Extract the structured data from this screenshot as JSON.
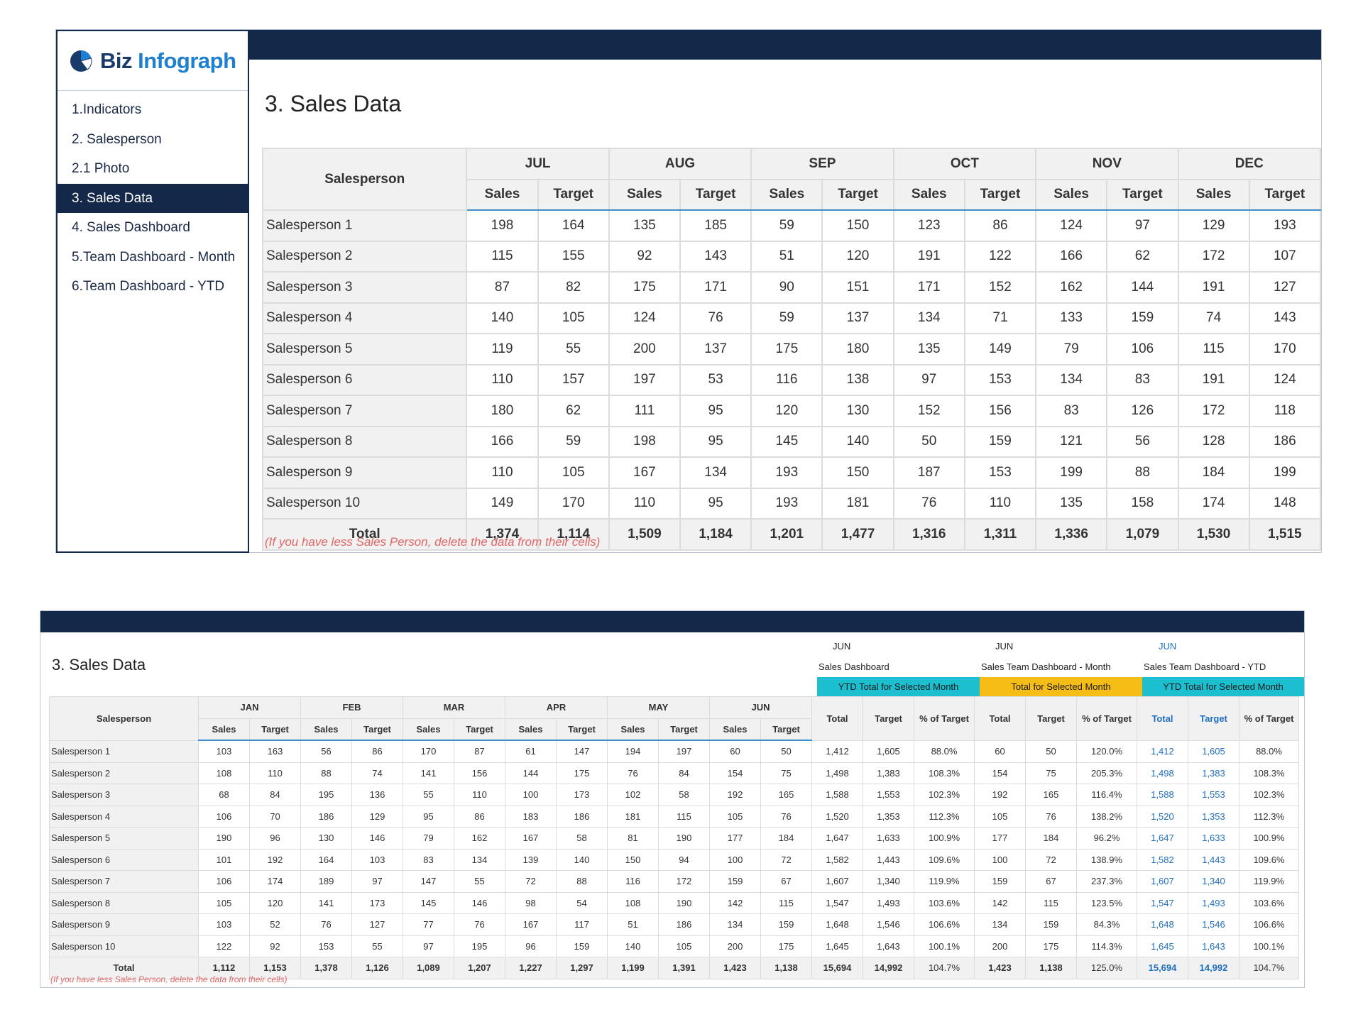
{
  "sidebar": {
    "logo": {
      "biz": "Biz",
      "infograph": "Infograph"
    },
    "items": [
      {
        "label": "1.Indicators"
      },
      {
        "label": "2. Salesperson"
      },
      {
        "label": "2.1 Photo"
      },
      {
        "label": "3. Sales Data"
      },
      {
        "label": "4. Sales Dashboard"
      },
      {
        "label": "5.Team Dashboard - Month"
      },
      {
        "label": "6.Team Dashboard - YTD"
      }
    ]
  },
  "colors": {
    "navy": "#14294a",
    "accent_blue": "#3c8fcf",
    "note_red": "#e06666",
    "cyan": "#1bbfcf",
    "amber": "#f5bd16",
    "ytd_blue": "#1f6fbf"
  },
  "top": {
    "title": "3. Sales Data",
    "salesperson_header": "Salesperson",
    "months": [
      "JUL",
      "AUG",
      "SEP",
      "OCT",
      "NOV",
      "DEC"
    ],
    "sales_label": "Sales",
    "target_label": "Target",
    "rows": [
      {
        "name": "Salesperson 1",
        "values": [
          "198",
          "164",
          "135",
          "185",
          "59",
          "150",
          "123",
          "86",
          "124",
          "97",
          "129",
          "193"
        ]
      },
      {
        "name": "Salesperson 2",
        "values": [
          "115",
          "155",
          "92",
          "143",
          "51",
          "120",
          "191",
          "122",
          "166",
          "62",
          "172",
          "107"
        ]
      },
      {
        "name": "Salesperson 3",
        "values": [
          "87",
          "82",
          "175",
          "171",
          "90",
          "151",
          "171",
          "152",
          "162",
          "144",
          "191",
          "127"
        ]
      },
      {
        "name": "Salesperson 4",
        "values": [
          "140",
          "105",
          "124",
          "76",
          "59",
          "137",
          "134",
          "71",
          "133",
          "159",
          "74",
          "143"
        ]
      },
      {
        "name": "Salesperson 5",
        "values": [
          "119",
          "55",
          "200",
          "137",
          "175",
          "180",
          "135",
          "149",
          "79",
          "106",
          "115",
          "170"
        ]
      },
      {
        "name": "Salesperson 6",
        "values": [
          "110",
          "157",
          "197",
          "53",
          "116",
          "138",
          "97",
          "153",
          "134",
          "83",
          "191",
          "124"
        ]
      },
      {
        "name": "Salesperson 7",
        "values": [
          "180",
          "62",
          "111",
          "95",
          "120",
          "130",
          "152",
          "156",
          "83",
          "126",
          "172",
          "118"
        ]
      },
      {
        "name": "Salesperson 8",
        "values": [
          "166",
          "59",
          "198",
          "95",
          "145",
          "140",
          "50",
          "159",
          "121",
          "56",
          "128",
          "186"
        ]
      },
      {
        "name": "Salesperson 9",
        "values": [
          "110",
          "105",
          "167",
          "134",
          "193",
          "150",
          "187",
          "153",
          "199",
          "88",
          "184",
          "199"
        ]
      },
      {
        "name": "Salesperson 10",
        "values": [
          "149",
          "170",
          "110",
          "95",
          "193",
          "181",
          "76",
          "110",
          "135",
          "158",
          "174",
          "148"
        ]
      }
    ],
    "total": {
      "name": "Total",
      "values": [
        "1,374",
        "1,114",
        "1,509",
        "1,184",
        "1,201",
        "1,477",
        "1,316",
        "1,311",
        "1,336",
        "1,079",
        "1,530",
        "1,515"
      ]
    },
    "note": "(If you have less Sales Person, delete the data from their cells)"
  },
  "bottom": {
    "title": "3. Sales Data",
    "selectors": [
      {
        "month": "JUN",
        "name": "Sales Dashboard",
        "band": "YTD Total for Selected Month"
      },
      {
        "month": "JUN",
        "name": "Sales Team Dashboard - Month",
        "band": "Total for Selected Month"
      },
      {
        "month": "JUN",
        "name": "Sales Team Dashboard - YTD",
        "band": "YTD Total for Selected Month"
      }
    ],
    "salesperson_header": "Salesperson",
    "months": [
      "JAN",
      "FEB",
      "MAR",
      "APR",
      "MAY",
      "JUN"
    ],
    "sales_label": "Sales",
    "target_label": "Target",
    "summary_headers": [
      "Total",
      "Target",
      "% of Target"
    ],
    "rows": [
      {
        "name": "Salesperson 1",
        "values": [
          "103",
          "163",
          "56",
          "86",
          "170",
          "87",
          "61",
          "147",
          "194",
          "197",
          "60",
          "50"
        ],
        "s1": [
          "1,412",
          "1,605",
          "88.0%"
        ],
        "s2": [
          "60",
          "50",
          "120.0%"
        ],
        "s3": [
          "1,412",
          "1,605",
          "88.0%"
        ]
      },
      {
        "name": "Salesperson 2",
        "values": [
          "108",
          "110",
          "88",
          "74",
          "141",
          "156",
          "144",
          "175",
          "76",
          "84",
          "154",
          "75"
        ],
        "s1": [
          "1,498",
          "1,383",
          "108.3%"
        ],
        "s2": [
          "154",
          "75",
          "205.3%"
        ],
        "s3": [
          "1,498",
          "1,383",
          "108.3%"
        ]
      },
      {
        "name": "Salesperson 3",
        "values": [
          "68",
          "84",
          "195",
          "136",
          "55",
          "110",
          "100",
          "173",
          "102",
          "58",
          "192",
          "165"
        ],
        "s1": [
          "1,588",
          "1,553",
          "102.3%"
        ],
        "s2": [
          "192",
          "165",
          "116.4%"
        ],
        "s3": [
          "1,588",
          "1,553",
          "102.3%"
        ]
      },
      {
        "name": "Salesperson 4",
        "values": [
          "106",
          "70",
          "186",
          "129",
          "95",
          "86",
          "183",
          "186",
          "181",
          "115",
          "105",
          "76"
        ],
        "s1": [
          "1,520",
          "1,353",
          "112.3%"
        ],
        "s2": [
          "105",
          "76",
          "138.2%"
        ],
        "s3": [
          "1,520",
          "1,353",
          "112.3%"
        ]
      },
      {
        "name": "Salesperson 5",
        "values": [
          "190",
          "96",
          "130",
          "146",
          "79",
          "162",
          "167",
          "58",
          "81",
          "190",
          "177",
          "184"
        ],
        "s1": [
          "1,647",
          "1,633",
          "100.9%"
        ],
        "s2": [
          "177",
          "184",
          "96.2%"
        ],
        "s3": [
          "1,647",
          "1,633",
          "100.9%"
        ]
      },
      {
        "name": "Salesperson 6",
        "values": [
          "101",
          "192",
          "164",
          "103",
          "83",
          "134",
          "139",
          "140",
          "150",
          "94",
          "100",
          "72"
        ],
        "s1": [
          "1,582",
          "1,443",
          "109.6%"
        ],
        "s2": [
          "100",
          "72",
          "138.9%"
        ],
        "s3": [
          "1,582",
          "1,443",
          "109.6%"
        ]
      },
      {
        "name": "Salesperson 7",
        "values": [
          "106",
          "174",
          "189",
          "97",
          "147",
          "55",
          "72",
          "88",
          "116",
          "172",
          "159",
          "67"
        ],
        "s1": [
          "1,607",
          "1,340",
          "119.9%"
        ],
        "s2": [
          "159",
          "67",
          "237.3%"
        ],
        "s3": [
          "1,607",
          "1,340",
          "119.9%"
        ]
      },
      {
        "name": "Salesperson 8",
        "values": [
          "105",
          "120",
          "141",
          "173",
          "145",
          "146",
          "98",
          "54",
          "108",
          "190",
          "142",
          "115"
        ],
        "s1": [
          "1,547",
          "1,493",
          "103.6%"
        ],
        "s2": [
          "142",
          "115",
          "123.5%"
        ],
        "s3": [
          "1,547",
          "1,493",
          "103.6%"
        ]
      },
      {
        "name": "Salesperson 9",
        "values": [
          "103",
          "52",
          "76",
          "127",
          "77",
          "76",
          "167",
          "117",
          "51",
          "186",
          "134",
          "159"
        ],
        "s1": [
          "1,648",
          "1,546",
          "106.6%"
        ],
        "s2": [
          "134",
          "159",
          "84.3%"
        ],
        "s3": [
          "1,648",
          "1,546",
          "106.6%"
        ]
      },
      {
        "name": "Salesperson 10",
        "values": [
          "122",
          "92",
          "153",
          "55",
          "97",
          "195",
          "96",
          "159",
          "140",
          "105",
          "200",
          "175"
        ],
        "s1": [
          "1,645",
          "1,643",
          "100.1%"
        ],
        "s2": [
          "200",
          "175",
          "114.3%"
        ],
        "s3": [
          "1,645",
          "1,643",
          "100.1%"
        ]
      }
    ],
    "total": {
      "name": "Total",
      "values": [
        "1,112",
        "1,153",
        "1,378",
        "1,126",
        "1,089",
        "1,207",
        "1,227",
        "1,297",
        "1,199",
        "1,391",
        "1,423",
        "1,138"
      ],
      "s1": [
        "15,694",
        "14,992",
        "104.7%"
      ],
      "s2": [
        "1,423",
        "1,138",
        "125.0%"
      ],
      "s3": [
        "15,694",
        "14,992",
        "104.7%"
      ]
    },
    "note": "(If you have less Sales Person, delete the data from their cells)"
  }
}
